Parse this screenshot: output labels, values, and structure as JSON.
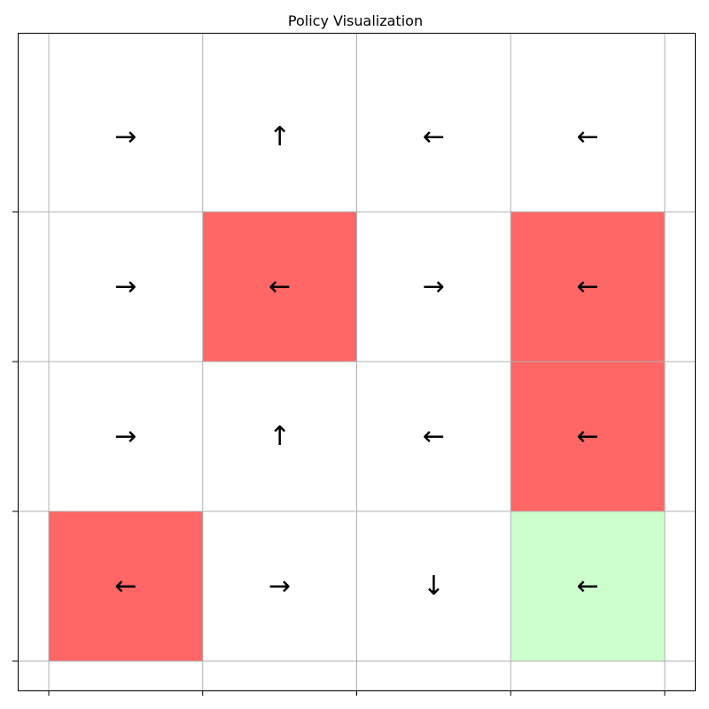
{
  "chart_data": {
    "type": "heatmap",
    "title": "Policy Visualization",
    "grid": true,
    "rows": 4,
    "cols": 4,
    "cells": [
      [
        "→",
        "↑",
        "←",
        "←"
      ],
      [
        "→",
        "←",
        "→",
        "←"
      ],
      [
        "→",
        "↑",
        "←",
        "←"
      ],
      [
        "←",
        "→",
        "↓",
        "←"
      ]
    ],
    "cell_types": [
      [
        "free",
        "free",
        "free",
        "free"
      ],
      [
        "free",
        "hole",
        "free",
        "hole"
      ],
      [
        "free",
        "free",
        "free",
        "hole"
      ],
      [
        "hole",
        "free",
        "free",
        "goal"
      ]
    ],
    "colors": {
      "free": "#ffffff",
      "hole": "#ff6666",
      "goal": "#ccffcc",
      "grid": "#b0b0b0",
      "axes": "#000000"
    }
  }
}
